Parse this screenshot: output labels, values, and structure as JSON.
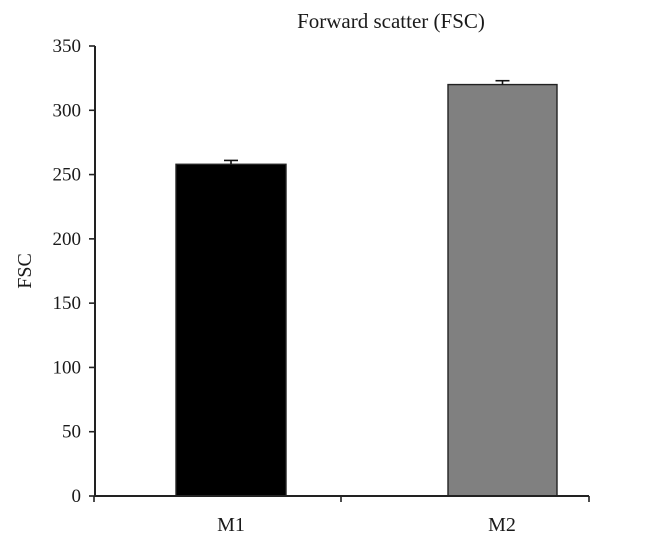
{
  "chart_data": {
    "type": "bar",
    "title": "Forward scatter (FSC)",
    "xlabel": "",
    "ylabel": "FSC",
    "categories": [
      "M1",
      "M2"
    ],
    "values": [
      258,
      320
    ],
    "errors": [
      3,
      3
    ],
    "colors": [
      "#000000",
      "#808080"
    ],
    "ylim": [
      0,
      350
    ],
    "yticks": [
      0,
      50,
      100,
      150,
      200,
      250,
      300,
      350
    ],
    "grid": false,
    "legend": null
  },
  "labels": {
    "title": "Forward scatter (FSC)",
    "ylabel": "FSC",
    "categories": [
      "M1",
      "M2"
    ],
    "yticks": [
      "0",
      "50",
      "100",
      "150",
      "200",
      "250",
      "300",
      "350"
    ]
  }
}
